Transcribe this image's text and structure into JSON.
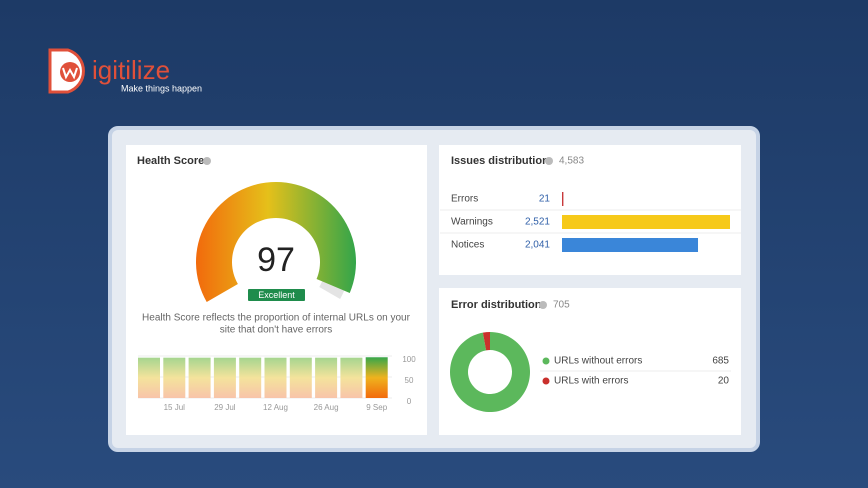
{
  "logo": {
    "name": "igitilize",
    "tagline": "Make things happen"
  },
  "health_score": {
    "title": "Health Score",
    "score": 97,
    "badge": "Excellent",
    "description": [
      "Health Score reflects the proportion of internal URLs on your",
      "site that don't have errors"
    ],
    "history": {
      "type": "bar",
      "categories": [
        null,
        "15 Jul",
        null,
        "29 Jul",
        null,
        "12 Aug",
        null,
        "26 Aug",
        null,
        "9 Sep"
      ],
      "values": [
        96,
        96,
        96,
        96,
        96,
        96,
        96,
        96,
        96,
        97
      ],
      "ylim": [
        0,
        100
      ],
      "yticks": [
        0,
        50,
        100
      ]
    }
  },
  "issues_distribution": {
    "type": "bar",
    "title": "Issues distribution",
    "total": "4,583",
    "categories": [
      "Errors",
      "Warnings",
      "Notices"
    ],
    "values": [
      21,
      2521,
      2041
    ],
    "value_labels": [
      "21",
      "2,521",
      "2,041"
    ],
    "colors": [
      "#c8393b",
      "#f6c919",
      "#3a86d9"
    ]
  },
  "error_distribution": {
    "type": "pie",
    "title": "Error distribution",
    "total": "705",
    "categories": [
      "URLs without errors",
      "URLs with errors"
    ],
    "values": [
      685,
      20
    ],
    "colors": [
      "#5cb85c",
      "#c9302c"
    ]
  }
}
